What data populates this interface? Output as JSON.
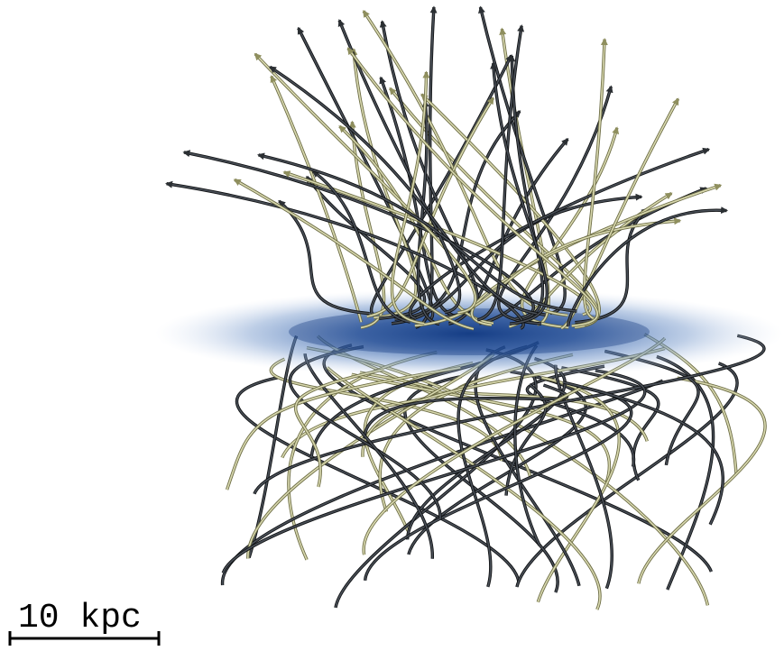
{
  "scale_bar": {
    "label": "10 kpc"
  }
}
